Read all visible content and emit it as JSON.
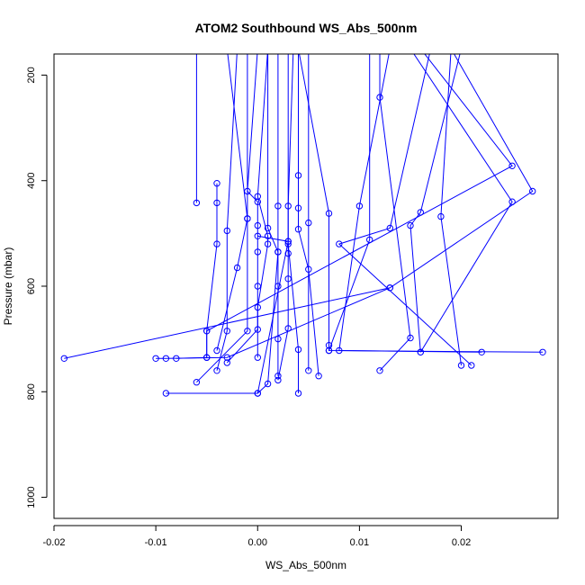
{
  "chart_data": {
    "type": "line",
    "title": "ATOM2 Southbound WS_Abs_500nm",
    "xlabel": "WS_Abs_500nm",
    "ylabel": "Pressure (mbar)",
    "xlim": [
      -0.02,
      0.0295
    ],
    "ylim": [
      1040,
      160
    ],
    "y_reversed": true,
    "x_ticks": [
      -0.02,
      -0.01,
      0.0,
      0.01,
      0.02
    ],
    "x_tick_labels": [
      "-0.02",
      "-0.01",
      "0.00",
      "0.01",
      "0.02"
    ],
    "y_ticks": [
      200,
      400,
      600,
      800,
      1000
    ],
    "y_tick_labels": [
      "200",
      "400",
      "600",
      "800",
      "1000"
    ],
    "grid": false,
    "legend": "none",
    "series_color": "#0000ff",
    "marker": "open-circle",
    "series": [
      {
        "points": [
          [
            -0.006,
            150
          ],
          [
            -0.006,
            442
          ]
        ]
      },
      {
        "points": [
          [
            -0.004,
            405
          ],
          [
            -0.004,
            442
          ],
          [
            -0.004,
            520
          ],
          [
            -0.005,
            685
          ],
          [
            -0.005,
            735
          ]
        ]
      },
      {
        "points": [
          [
            -0.002,
            150
          ],
          [
            -0.003,
            495
          ],
          [
            -0.003,
            685
          ],
          [
            -0.004,
            760
          ]
        ]
      },
      {
        "points": [
          [
            -0.001,
            150
          ],
          [
            -0.001,
            472
          ],
          [
            -0.002,
            565
          ],
          [
            -0.004,
            722
          ]
        ]
      },
      {
        "points": [
          [
            0.0,
            150
          ],
          [
            -0.001,
            420
          ],
          [
            0.0,
            440
          ],
          [
            0.0,
            485
          ],
          [
            0.0,
            535
          ],
          [
            0.0,
            600
          ],
          [
            0.0,
            682
          ],
          [
            -0.003,
            745
          ]
        ]
      },
      {
        "points": [
          [
            0.001,
            150
          ],
          [
            0.0,
            430
          ],
          [
            0.001,
            505
          ],
          [
            0.001,
            520
          ],
          [
            0.0,
            640
          ],
          [
            0.0,
            735
          ]
        ]
      },
      {
        "points": [
          [
            0.002,
            150
          ],
          [
            0.002,
            448
          ],
          [
            0.002,
            535
          ],
          [
            0.002,
            600
          ],
          [
            0.002,
            700
          ],
          [
            0.002,
            770
          ]
        ]
      },
      {
        "points": [
          [
            0.003,
            150
          ],
          [
            0.003,
            515
          ],
          [
            0.003,
            538
          ],
          [
            0.003,
            586
          ],
          [
            0.003,
            680
          ],
          [
            0.002,
            778
          ]
        ]
      },
      {
        "points": [
          [
            0.0035,
            150
          ],
          [
            0.003,
            448
          ],
          [
            0.003,
            520
          ],
          [
            0.004,
            720
          ],
          [
            0.004,
            803
          ]
        ]
      },
      {
        "points": [
          [
            0.004,
            150
          ],
          [
            0.004,
            390
          ],
          [
            0.004,
            452
          ],
          [
            0.004,
            492
          ],
          [
            0.005,
            568
          ],
          [
            0.006,
            770
          ]
        ]
      },
      {
        "points": [
          [
            0.005,
            150
          ],
          [
            0.005,
            480
          ],
          [
            0.005,
            760
          ]
        ]
      },
      {
        "points": [
          [
            0.001,
            150
          ],
          [
            0.001,
            490
          ],
          [
            0.002,
            535
          ],
          [
            0.001,
            785
          ],
          [
            0.0,
            803
          ]
        ]
      },
      {
        "points": [
          [
            -0.003,
            150
          ],
          [
            -0.001,
            472
          ],
          [
            -0.001,
            685
          ],
          [
            -0.006,
            782
          ]
        ]
      },
      {
        "points": [
          [
            0.004,
            150
          ],
          [
            0.007,
            462
          ],
          [
            0.007,
            712
          ],
          [
            0.007,
            722
          ]
        ]
      },
      {
        "points": [
          [
            0.011,
            150
          ],
          [
            0.011,
            512
          ],
          [
            0.007,
            722
          ],
          [
            0.028,
            725
          ]
        ]
      },
      {
        "points": [
          [
            0.012,
            150
          ],
          [
            0.012,
            242
          ],
          [
            0.015,
            698
          ],
          [
            0.012,
            760
          ]
        ]
      },
      {
        "points": [
          [
            0.013,
            150
          ],
          [
            0.01,
            448
          ],
          [
            0.008,
            722
          ],
          [
            0.022,
            725
          ]
        ]
      },
      {
        "points": [
          [
            0.017,
            150
          ],
          [
            0.013,
            490
          ],
          [
            0.008,
            520
          ],
          [
            0.021,
            750
          ]
        ]
      },
      {
        "points": [
          [
            0.019,
            150
          ],
          [
            0.018,
            468
          ],
          [
            0.02,
            750
          ]
        ]
      },
      {
        "points": [
          [
            0.02,
            150
          ],
          [
            0.016,
            460
          ],
          [
            0.015,
            485
          ],
          [
            0.016,
            725
          ]
        ]
      },
      {
        "points": [
          [
            0.015,
            150
          ],
          [
            0.025,
            440
          ],
          [
            0.016,
            725
          ]
        ]
      },
      {
        "points": [
          [
            0.016,
            150
          ],
          [
            0.025,
            372
          ],
          [
            -0.005,
            685
          ],
          [
            -0.005,
            735
          ],
          [
            -0.008,
            737
          ]
        ]
      },
      {
        "points": [
          [
            0.019,
            150
          ],
          [
            0.027,
            420
          ],
          [
            0.013,
            603
          ],
          [
            -0.019,
            737
          ]
        ]
      },
      {
        "points": [
          [
            0.013,
            603
          ],
          [
            -0.003,
            735
          ],
          [
            -0.009,
            737
          ],
          [
            -0.01,
            737
          ]
        ]
      },
      {
        "points": [
          [
            -0.009,
            803
          ],
          [
            0.0,
            803
          ],
          [
            0.003,
            515
          ],
          [
            0.0,
            505
          ]
        ]
      }
    ]
  }
}
